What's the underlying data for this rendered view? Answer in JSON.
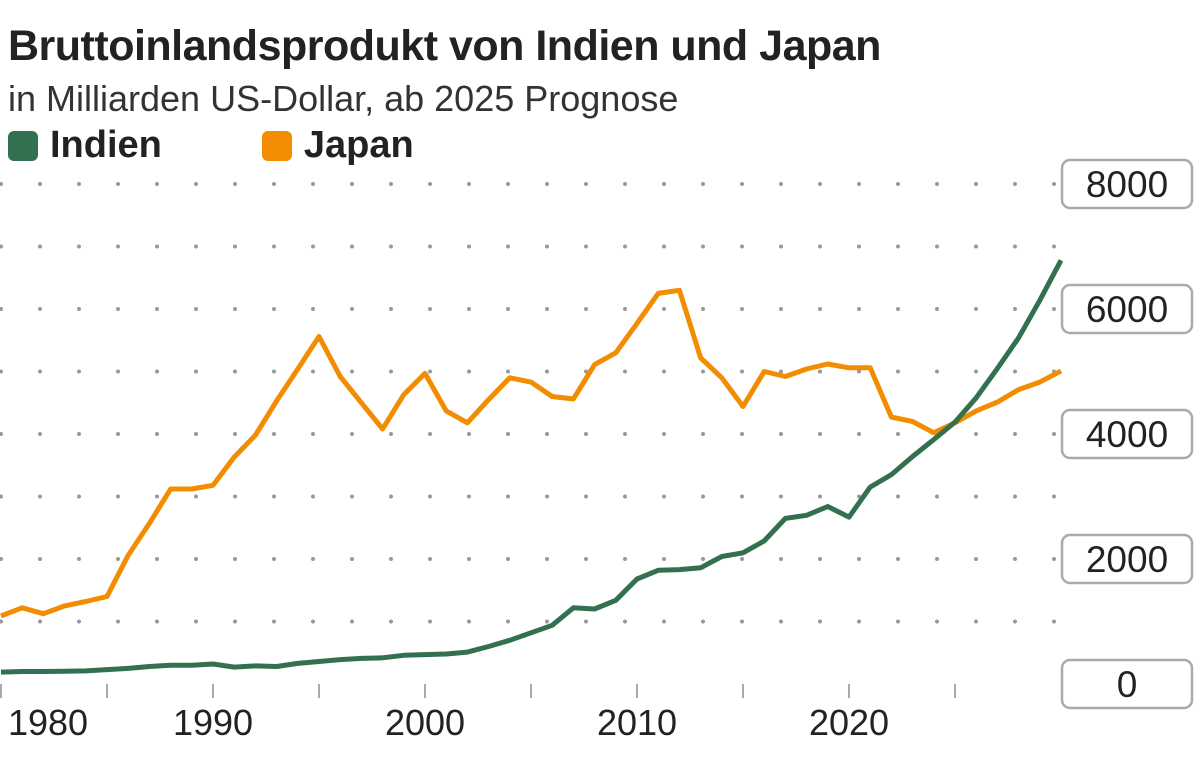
{
  "chart_data": {
    "type": "line",
    "title": "Bruttoinlandsprodukt von Indien und Japan",
    "subtitle": "in Milliarden US-Dollar, ab 2025 Prognose",
    "xlabel": "",
    "ylabel": "",
    "xlim": [
      1980,
      2030
    ],
    "ylim": [
      0,
      8000
    ],
    "x_ticks": [
      1980,
      1990,
      2000,
      2010,
      2020
    ],
    "y_ticks": [
      0,
      2000,
      4000,
      6000,
      8000
    ],
    "grid": "dotted horizontal",
    "legend_position": "top-left",
    "x": [
      1980,
      1981,
      1982,
      1983,
      1984,
      1985,
      1986,
      1987,
      1988,
      1989,
      1990,
      1991,
      1992,
      1993,
      1994,
      1995,
      1996,
      1997,
      1998,
      1999,
      2000,
      2001,
      2002,
      2003,
      2004,
      2005,
      2006,
      2007,
      2008,
      2009,
      2010,
      2011,
      2012,
      2013,
      2014,
      2015,
      2016,
      2017,
      2018,
      2019,
      2020,
      2021,
      2022,
      2023,
      2024,
      2025,
      2026,
      2027,
      2028,
      2029,
      2030
    ],
    "series": [
      {
        "name": "Indien",
        "color": "#33704f",
        "values": [
          190,
          200,
          200,
          205,
          210,
          230,
          250,
          280,
          300,
          300,
          320,
          270,
          290,
          280,
          330,
          360,
          390,
          410,
          420,
          460,
          470,
          480,
          510,
          600,
          700,
          820,
          940,
          1220,
          1200,
          1340,
          1680,
          1820,
          1830,
          1860,
          2040,
          2100,
          2290,
          2650,
          2700,
          2840,
          2670,
          3150,
          3350,
          3640,
          3910,
          4190,
          4580,
          5050,
          5540,
          6140,
          6780
        ]
      },
      {
        "name": "Japan",
        "color": "#f28c00",
        "values": [
          1090,
          1220,
          1125,
          1250,
          1320,
          1400,
          2060,
          2570,
          3120,
          3120,
          3180,
          3630,
          3980,
          4530,
          5040,
          5560,
          4920,
          4500,
          4080,
          4630,
          4970,
          4370,
          4180,
          4550,
          4900,
          4830,
          4600,
          4560,
          5110,
          5300,
          5770,
          6250,
          6300,
          5220,
          4900,
          4440,
          5000,
          4920,
          5040,
          5120,
          5060,
          5060,
          4270,
          4200,
          4020,
          4180,
          4370,
          4510,
          4710,
          4830,
          5010
        ]
      }
    ]
  }
}
